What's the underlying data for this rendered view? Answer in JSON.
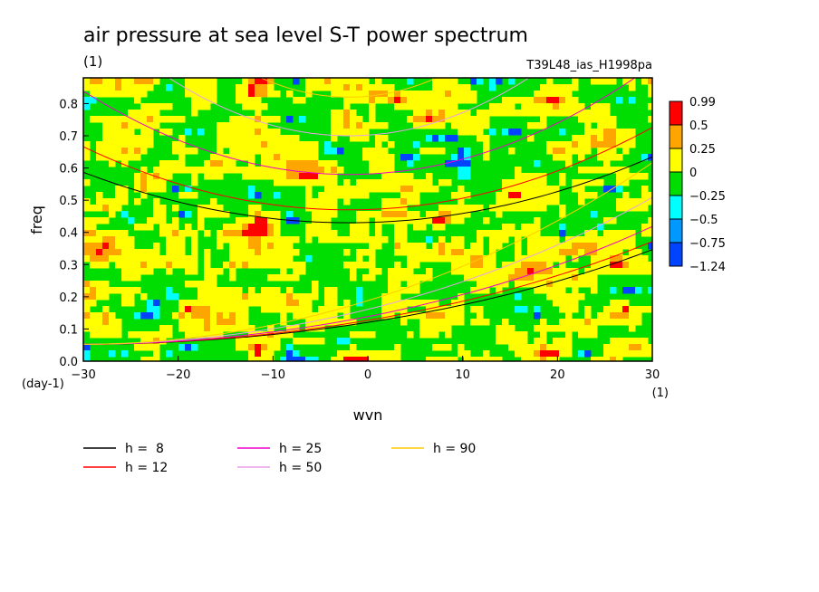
{
  "chart_data": {
    "type": "heatmap",
    "title": "air pressure at sea level S-T power spectrum",
    "title_unit": "(1)",
    "experiment": "T39L48_ias_H1998pa",
    "xlabel": "wvn",
    "xunit": "(1)",
    "ylabel": "freq",
    "yunit": "(day-1)",
    "xlim": [
      -30,
      30
    ],
    "ylim": [
      0,
      0.88
    ],
    "xticks": [
      -30,
      -20,
      -10,
      0,
      10,
      20,
      30
    ],
    "yticks": [
      0,
      0.1,
      0.2,
      0.3,
      0.4,
      0.5,
      0.6,
      0.7,
      0.8
    ],
    "colorbar": {
      "labels": [
        "0.99",
        "0.5",
        "0.25",
        "0",
        "-0.25",
        "-0.5",
        "-0.75",
        "-1.24"
      ],
      "colors": [
        "#ff0000",
        "#ffa500",
        "#ffff00",
        "#00dd00",
        "#00ffff",
        "#0099ff",
        "#0044ff"
      ]
    },
    "field_levels": [
      {
        "label": "< -0.75",
        "fraction": 0.01
      },
      {
        "label": "-0.5 to -0.25",
        "fraction": 0.02
      },
      {
        "label": "-0.25 to 0",
        "fraction": 0.47
      },
      {
        "label": "0 to 0.25",
        "fraction": 0.44
      },
      {
        "label": "0.25 to 0.5",
        "fraction": 0.05
      },
      {
        "label": "> 0.5",
        "fraction": 0.01
      }
    ],
    "dispersion_curves": [
      {
        "name": "h =  8",
        "color": "#000000"
      },
      {
        "name": "h = 12",
        "color": "#ff0000"
      },
      {
        "name": "h = 25",
        "color": "#ee00cc"
      },
      {
        "name": "h = 50",
        "color": "#e8a0e8"
      },
      {
        "name": "h = 90",
        "color": "#ffcc00"
      }
    ]
  }
}
